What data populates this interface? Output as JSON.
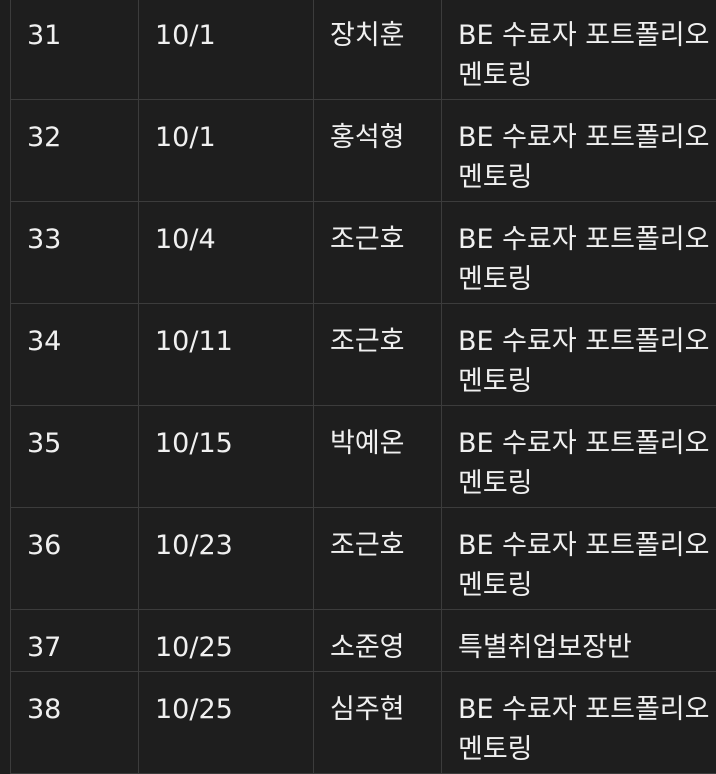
{
  "table": {
    "rows": [
      {
        "no": "31",
        "date": "10/1",
        "name": "장치훈",
        "desc": "BE 수료자 포트폴리오 멘토링"
      },
      {
        "no": "32",
        "date": "10/1",
        "name": "홍석형",
        "desc": "BE 수료자 포트폴리오 멘토링"
      },
      {
        "no": "33",
        "date": "10/4",
        "name": "조근호",
        "desc": "BE 수료자 포트폴리오 멘토링"
      },
      {
        "no": "34",
        "date": "10/11",
        "name": "조근호",
        "desc": "BE 수료자 포트폴리오 멘토링"
      },
      {
        "no": "35",
        "date": "10/15",
        "name": "박예온",
        "desc": "BE 수료자 포트폴리오 멘토링"
      },
      {
        "no": "36",
        "date": "10/23",
        "name": "조근호",
        "desc": "BE 수료자 포트폴리오 멘토링"
      },
      {
        "no": "37",
        "date": "10/25",
        "name": "소준영",
        "desc": "특별취업보장반"
      },
      {
        "no": "38",
        "date": "10/25",
        "name": "심주현",
        "desc": "BE 수료자 포트폴리오 멘토링"
      }
    ]
  }
}
